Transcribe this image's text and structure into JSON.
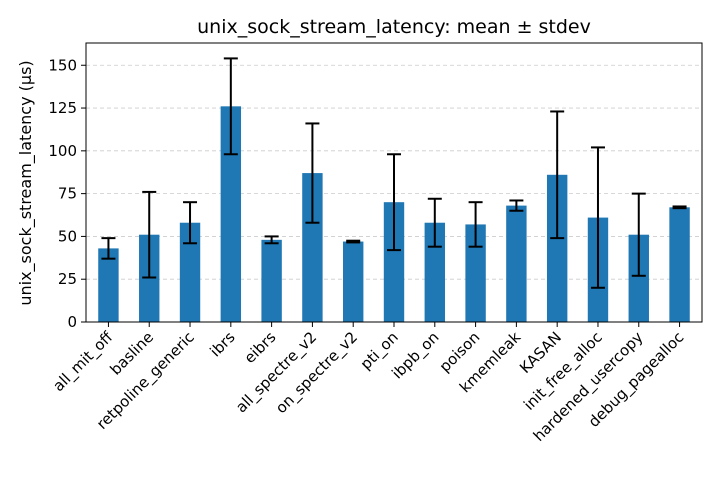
{
  "chart_data": {
    "type": "bar",
    "title": "unix_sock_stream_latency: mean ± stdev",
    "xlabel": "",
    "ylabel": "unix_sock_stream_latency (µs)",
    "ylim": [
      0,
      163
    ],
    "yticks": [
      0,
      25,
      50,
      75,
      100,
      125,
      150
    ],
    "grid": "y-dashed",
    "legend": "none",
    "bar_color": "#1f77b4",
    "error_color": "#000000",
    "categories": [
      "all_mit_off",
      "basline",
      "retpoline_generic",
      "ibrs",
      "eibrs",
      "all_spectre_v2",
      "on_spectre_v2",
      "pti_on",
      "ibpb_on",
      "poison",
      "kmemleak",
      "KASAN",
      "init_free_alloc",
      "hardened_usercopy",
      "debug_pagealloc"
    ],
    "values": [
      43,
      51,
      58,
      126,
      48,
      87,
      47,
      70,
      58,
      57,
      68,
      86,
      61,
      51,
      67
    ],
    "errors": [
      6,
      25,
      12,
      28,
      2,
      29,
      0.5,
      28,
      14,
      13,
      3,
      37,
      41,
      24,
      0.5
    ]
  }
}
